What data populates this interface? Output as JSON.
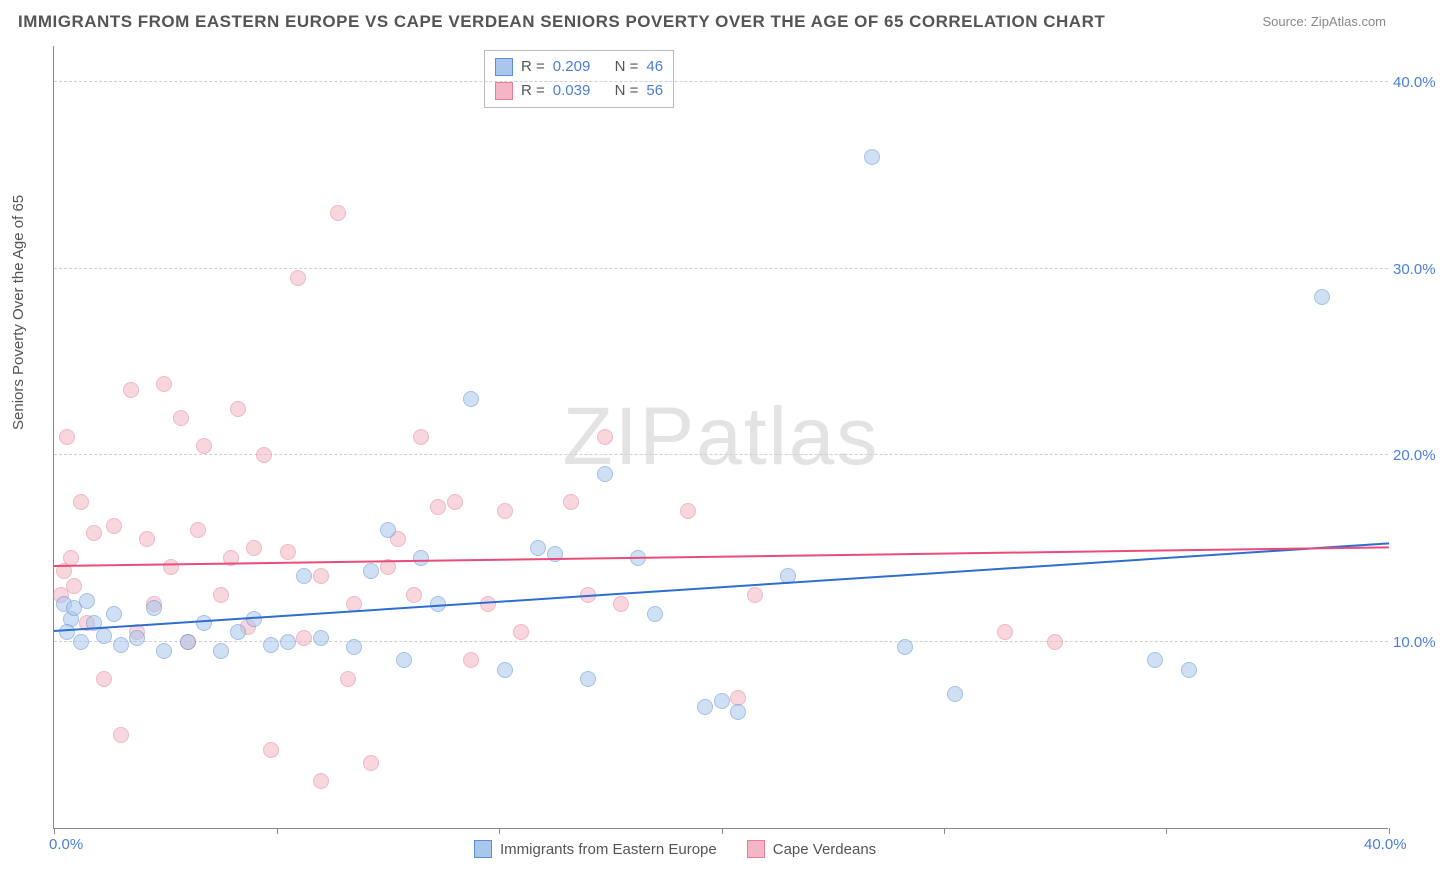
{
  "title": "IMMIGRANTS FROM EASTERN EUROPE VS CAPE VERDEAN SENIORS POVERTY OVER THE AGE OF 65 CORRELATION CHART",
  "source": "Source: ZipAtlas.com",
  "y_axis_label": "Seniors Poverty Over the Age of 65",
  "watermark": "ZIPatlas",
  "chart": {
    "type": "scatter",
    "xlim": [
      0,
      40
    ],
    "ylim": [
      0,
      42
    ],
    "x_ticks": [
      0,
      6.67,
      13.33,
      20,
      26.67,
      33.33,
      40
    ],
    "y_ticks": [
      10,
      20,
      30,
      40
    ],
    "x_tick_labels_shown": {
      "0": "0.0%",
      "40": "40.0%"
    },
    "y_tick_labels": {
      "10": "10.0%",
      "20": "20.0%",
      "30": "30.0%",
      "40": "40.0%"
    },
    "grid_color": "#d0d0d0",
    "axis_color": "#888888",
    "tick_label_color": "#4a7fd8",
    "background_color": "#ffffff"
  },
  "series": [
    {
      "name": "Immigrants from Eastern Europe",
      "fill": "#a9c7ec",
      "stroke": "#5b8fd6",
      "fill_opacity": 0.55,
      "marker_radius": 8,
      "trend": {
        "x1": 0,
        "y1": 10.5,
        "x2": 40,
        "y2": 15.2,
        "color": "#2e6ed0",
        "width": 2
      },
      "stats": {
        "R": "0.209",
        "N": "46"
      },
      "points": [
        [
          0.3,
          12.0
        ],
        [
          0.5,
          11.2
        ],
        [
          0.4,
          10.5
        ],
        [
          0.6,
          11.8
        ],
        [
          0.8,
          10.0
        ],
        [
          1.0,
          12.2
        ],
        [
          1.2,
          11.0
        ],
        [
          1.5,
          10.3
        ],
        [
          1.8,
          11.5
        ],
        [
          2.0,
          9.8
        ],
        [
          2.5,
          10.2
        ],
        [
          3.0,
          11.8
        ],
        [
          3.3,
          9.5
        ],
        [
          4.0,
          10.0
        ],
        [
          4.5,
          11.0
        ],
        [
          5.0,
          9.5
        ],
        [
          5.5,
          10.5
        ],
        [
          6.0,
          11.2
        ],
        [
          6.5,
          9.8
        ],
        [
          7.0,
          10.0
        ],
        [
          7.5,
          13.5
        ],
        [
          8.0,
          10.2
        ],
        [
          9.0,
          9.7
        ],
        [
          9.5,
          13.8
        ],
        [
          10.0,
          16.0
        ],
        [
          10.5,
          9.0
        ],
        [
          11.0,
          14.5
        ],
        [
          11.5,
          12.0
        ],
        [
          12.5,
          23.0
        ],
        [
          13.5,
          8.5
        ],
        [
          14.5,
          15.0
        ],
        [
          15.0,
          14.7
        ],
        [
          16.0,
          8.0
        ],
        [
          16.5,
          19.0
        ],
        [
          17.5,
          14.5
        ],
        [
          18.0,
          11.5
        ],
        [
          19.5,
          6.5
        ],
        [
          20.0,
          6.8
        ],
        [
          20.5,
          6.2
        ],
        [
          22.0,
          13.5
        ],
        [
          24.5,
          36.0
        ],
        [
          25.5,
          9.7
        ],
        [
          27.0,
          7.2
        ],
        [
          33.0,
          9.0
        ],
        [
          34.0,
          8.5
        ],
        [
          38.0,
          28.5
        ]
      ]
    },
    {
      "name": "Cape Verdeans",
      "fill": "#f4b5c4",
      "stroke": "#e87d9a",
      "fill_opacity": 0.55,
      "marker_radius": 8,
      "trend": {
        "x1": 0,
        "y1": 14.0,
        "x2": 40,
        "y2": 15.0,
        "color": "#e84c7a",
        "width": 2
      },
      "stats": {
        "R": "0.039",
        "N": "56"
      },
      "points": [
        [
          0.2,
          12.5
        ],
        [
          0.3,
          13.8
        ],
        [
          0.5,
          14.5
        ],
        [
          0.4,
          21.0
        ],
        [
          0.6,
          13.0
        ],
        [
          0.8,
          17.5
        ],
        [
          1.0,
          11.0
        ],
        [
          1.2,
          15.8
        ],
        [
          1.5,
          8.0
        ],
        [
          1.8,
          16.2
        ],
        [
          2.0,
          5.0
        ],
        [
          2.3,
          23.5
        ],
        [
          2.5,
          10.5
        ],
        [
          2.8,
          15.5
        ],
        [
          3.0,
          12.0
        ],
        [
          3.3,
          23.8
        ],
        [
          3.5,
          14.0
        ],
        [
          3.8,
          22.0
        ],
        [
          4.0,
          10.0
        ],
        [
          4.3,
          16.0
        ],
        [
          4.5,
          20.5
        ],
        [
          5.0,
          12.5
        ],
        [
          5.3,
          14.5
        ],
        [
          5.5,
          22.5
        ],
        [
          5.8,
          10.8
        ],
        [
          6.0,
          15.0
        ],
        [
          6.3,
          20.0
        ],
        [
          6.5,
          4.2
        ],
        [
          7.0,
          14.8
        ],
        [
          7.3,
          29.5
        ],
        [
          7.5,
          10.2
        ],
        [
          8.0,
          13.5
        ],
        [
          8.5,
          33.0
        ],
        [
          8.8,
          8.0
        ],
        [
          9.0,
          12.0
        ],
        [
          9.5,
          3.5
        ],
        [
          10.0,
          14.0
        ],
        [
          10.3,
          15.5
        ],
        [
          10.8,
          12.5
        ],
        [
          11.0,
          21.0
        ],
        [
          11.5,
          17.2
        ],
        [
          12.0,
          17.5
        ],
        [
          12.5,
          9.0
        ],
        [
          13.0,
          12.0
        ],
        [
          13.5,
          17.0
        ],
        [
          14.0,
          10.5
        ],
        [
          15.5,
          17.5
        ],
        [
          16.0,
          12.5
        ],
        [
          16.5,
          21.0
        ],
        [
          17.0,
          12.0
        ],
        [
          19.0,
          17.0
        ],
        [
          20.5,
          7.0
        ],
        [
          21.0,
          12.5
        ],
        [
          28.5,
          10.5
        ],
        [
          30.0,
          10.0
        ],
        [
          8.0,
          2.5
        ]
      ]
    }
  ],
  "stats_box_labels": {
    "R": "R =",
    "N": "N ="
  },
  "legend": {
    "items": [
      {
        "label": "Immigrants from Eastern Europe",
        "fill": "#a9c7ec",
        "stroke": "#5b8fd6"
      },
      {
        "label": "Cape Verdeans",
        "fill": "#f4b5c4",
        "stroke": "#e87d9a"
      }
    ]
  }
}
